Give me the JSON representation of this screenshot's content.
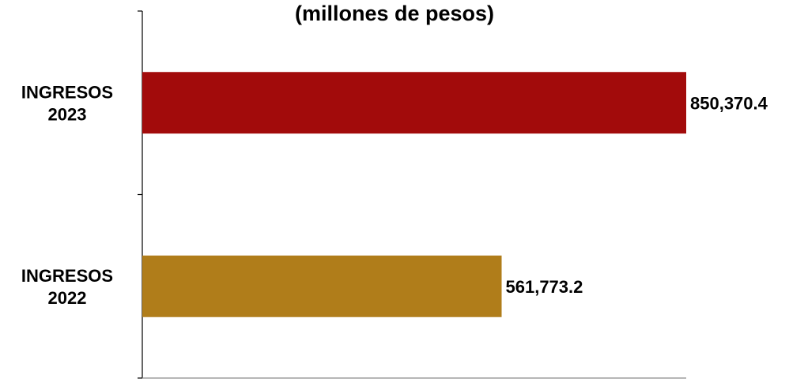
{
  "chart_data": {
    "type": "bar",
    "orientation": "horizontal",
    "title": "(millones de pesos)",
    "categories": [
      [
        "INGRESOS",
        "2023"
      ],
      [
        "INGRESOS",
        "2022"
      ]
    ],
    "values": [
      850370.4,
      561773.2
    ],
    "value_labels": [
      "850,370.4",
      "561,773.2"
    ],
    "colors": [
      "#a20b0b",
      "#b07d1a"
    ],
    "xlim": [
      0,
      850370.4
    ],
    "grid": false,
    "legend": "none"
  }
}
